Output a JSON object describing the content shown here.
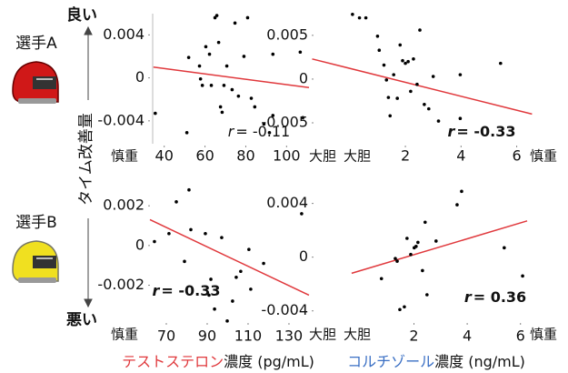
{
  "chart_data": [
    {
      "type": "scatter",
      "color": "#000000",
      "x": [
        35.6,
        51.1,
        52,
        57.3,
        57.8,
        58.7,
        60.4,
        62.2,
        63.1,
        64.9,
        65.8,
        66.7,
        67.6,
        68.4,
        69.3,
        70.7,
        73.3,
        74.7,
        76.4,
        79.1,
        80.9,
        82.7,
        84.4,
        88.9,
        91.6,
        93.3,
        93.3,
        106.7,
        108
      ],
      "values": [
        -0.0033,
        -0.0051,
        0.0019,
        0.0011,
        -0.0001,
        -0.0007,
        0.0029,
        0.0022,
        -0.0007,
        0.0056,
        0.0058,
        0.0033,
        -0.0027,
        -0.0032,
        -0.0007,
        0.0011,
        -0.0011,
        0.0051,
        -0.0017,
        0.002,
        0.0056,
        -0.0019,
        -0.0027,
        -0.0043,
        -0.0051,
        0.0022,
        -0.0035,
        0.0024,
        -0.0037
      ],
      "trend": {
        "color": "#e0383c",
        "x": [
          34.7,
          111
        ],
        "y": [
          0.001,
          -0.0009
        ]
      },
      "r_symbol": "r",
      "r_text": "= -0.11",
      "r_bold": false,
      "xlim": [
        33,
        111
      ],
      "ylim": [
        -0.0063,
        0.0064
      ],
      "xticks": [
        40,
        60,
        80,
        100
      ],
      "yticks": [
        0.004,
        0,
        -0.004
      ],
      "left_end": {
        "text": "慎重",
        "color": "#3a6fc4"
      },
      "right_end": {
        "text": "大胆",
        "color": "#e0383c"
      }
    },
    {
      "type": "scatter",
      "color": "#000000",
      "x": [
        0.1,
        0.35,
        0.58,
        1.0,
        1.06,
        1.23,
        1.32,
        1.39,
        1.45,
        1.58,
        1.71,
        1.81,
        1.9,
        2,
        2.1,
        2.19,
        2.29,
        2.42,
        2.52,
        2.68,
        2.84,
        3.0,
        3.19,
        3.97,
        3.97,
        5.42
      ],
      "values": [
        0.0074,
        0.007,
        0.007,
        0.0049,
        0.0033,
        0.0016,
        -0.0001,
        -0.0021,
        -0.0042,
        0.0005,
        -0.0022,
        0.0039,
        0.0021,
        0.0018,
        0.002,
        -0.0014,
        0.0023,
        -0.0006,
        0.0056,
        -0.0029,
        -0.0034,
        0.0003,
        -0.0048,
        0.0005,
        -0.0045,
        0.0018
      ],
      "trend": {
        "color": "#e0383c",
        "x": [
          -1.35,
          6.55
        ],
        "y": [
          0.0023,
          -0.004
        ]
      },
      "r_symbol": "r",
      "r_text": "= -0.33",
      "r_bold": true,
      "xlim": [
        -1.3,
        6.7
      ],
      "ylim": [
        -0.0076,
        0.008
      ],
      "xticks": [
        2,
        4,
        6
      ],
      "yticks": [
        0.005,
        0,
        -0.005
      ],
      "left_end": {
        "text": "大胆",
        "color": "#e0383c"
      },
      "right_end": {
        "text": "慎重",
        "color": "#3a6fc4"
      }
    },
    {
      "type": "scatter",
      "color": "#000000",
      "x": [
        64.2,
        71.3,
        74.9,
        78.9,
        81.1,
        82,
        89.1,
        90.9,
        91.8,
        93.6,
        97.1,
        99.8,
        102.4,
        104.2,
        106.4,
        110.4,
        111.3,
        117.6,
        136.2
      ],
      "values": [
        0.0002,
        0.0006,
        0.0022,
        -0.0008,
        0.0028,
        0.0008,
        0.0006,
        -0.0025,
        -0.0017,
        -0.0032,
        0.0004,
        -0.0038,
        -0.0028,
        -0.0016,
        -0.0013,
        -0.0002,
        -0.0022,
        -0.0009,
        0.0016
      ],
      "trend": {
        "color": "#e0383c",
        "x": [
          62,
          139.8
        ],
        "y": [
          0.0013,
          -0.0025
        ]
      },
      "r_symbol": "r",
      "r_text": "= -0.33",
      "r_bold": true,
      "xlim": [
        62,
        139.8
      ],
      "ylim": [
        -0.0039,
        0.0032
      ],
      "xticks": [
        70,
        90,
        110,
        130
      ],
      "yticks": [
        0.002,
        0,
        -0.002
      ],
      "left_end": {
        "text": "慎重",
        "color": "#3a6fc4"
      },
      "right_end": {
        "text": "大胆",
        "color": "#e0383c"
      }
    },
    {
      "type": "scatter",
      "color": "#000000",
      "x": [
        0.78,
        1.3,
        1.37,
        1.47,
        1.64,
        1.74,
        1.88,
        2.01,
        2.08,
        2.15,
        2.32,
        2.42,
        2.49,
        2.83,
        3.62,
        3.79,
        5.39,
        6.08
      ],
      "values": [
        -0.0016,
        -0.0001,
        -0.0003,
        -0.0039,
        -0.0037,
        0.0014,
        0.0002,
        0.0007,
        0.0008,
        0.0011,
        -0.001,
        0.0026,
        -0.0028,
        0.0012,
        0.0039,
        0.0049,
        0.0007,
        -0.0014
      ],
      "trend": {
        "color": "#e0383c",
        "x": [
          -0.34,
          6.25
        ],
        "y": [
          -0.0012,
          0.0027
        ]
      },
      "r_symbol": "r",
      "r_text": "= 0.36",
      "r_bold": true,
      "xlim": [
        -1.77,
        6.59
      ],
      "ylim": [
        -0.0049,
        0.0056
      ],
      "xticks": [
        2,
        4,
        6
      ],
      "yticks": [
        0.004,
        0,
        -0.004
      ],
      "left_end": {
        "text": "大胆",
        "color": "#e0383c"
      },
      "right_end": {
        "text": "慎重",
        "color": "#3a6fc4"
      }
    }
  ],
  "figure": {
    "player_a": "選手A",
    "player_b": "選手B",
    "good": "良い",
    "bad": "悪い",
    "y_title": "タイム改善量",
    "x_title_left": {
      "highlight": "テストステロン",
      "highlight_color": "#e0383c",
      "rest": "濃度 (pg/mL)"
    },
    "x_title_right": {
      "highlight": "コルチゾール",
      "highlight_color": "#3a6fc4",
      "rest": "濃度 (ng/mL)"
    }
  }
}
